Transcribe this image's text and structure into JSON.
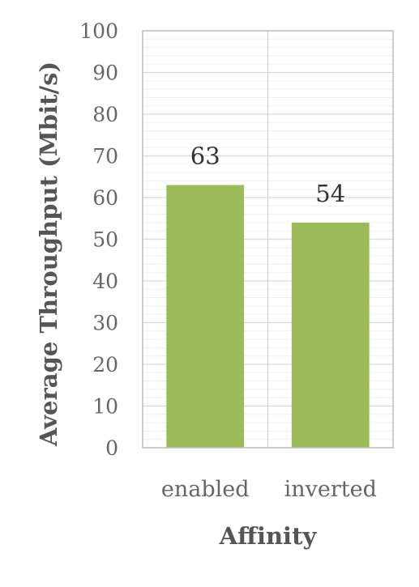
{
  "chart_data": {
    "type": "bar",
    "categories": [
      "enabled",
      "inverted"
    ],
    "values": [
      63,
      54
    ],
    "data_labels": [
      "63",
      "54"
    ],
    "title": "",
    "xlabel": "Affinity",
    "ylabel": "Average Throughput (Mbit/s)",
    "ylim": [
      0,
      100
    ],
    "yticks": [
      0,
      10,
      20,
      30,
      40,
      50,
      60,
      70,
      80,
      90,
      100
    ],
    "major_grid": true,
    "minor_grid": true,
    "legend": "none",
    "colors": {
      "bar": "#9bbb59",
      "major_grid": "#d9d9d9",
      "minor_grid": "#efefef",
      "frame": "#bfbfbf",
      "divider": "#d0d0d0"
    }
  }
}
